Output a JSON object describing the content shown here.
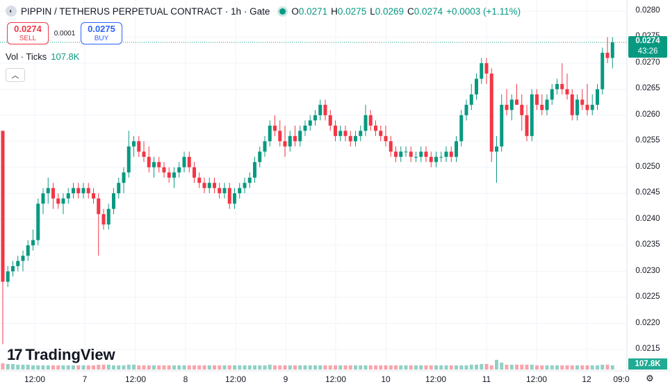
{
  "header": {
    "title": "PIPPIN / TETHERUS PERPETUAL CONTRACT · 1h · Gate",
    "ohlc": [
      {
        "k": "O",
        "v": "0.0271"
      },
      {
        "k": "H",
        "v": "0.0275"
      },
      {
        "k": "L",
        "v": "0.0269"
      },
      {
        "k": "C",
        "v": "0.0274"
      }
    ],
    "change": "+0.0003 (+1.11%)"
  },
  "trade": {
    "sell_price": "0.0274",
    "sell_label": "SELL",
    "spread": "0.0001",
    "buy_price": "0.0275",
    "buy_label": "BUY"
  },
  "volume": {
    "label": "Vol · Ticks",
    "value": "107.8K"
  },
  "branding": {
    "name": "TradingView"
  },
  "price_tag": {
    "price": "0.0274",
    "countdown": "43:26"
  },
  "colors": {
    "up": "#089981",
    "down": "#f23645",
    "accent": "#2962ff"
  },
  "chart_data": {
    "type": "candlestick",
    "y_ticks": [
      "0.0280",
      "0.0275",
      "0.0270",
      "0.0265",
      "0.0260",
      "0.0255",
      "0.0250",
      "0.0245",
      "0.0240",
      "0.0235",
      "0.0230",
      "0.0225",
      "0.0220",
      "0.0215"
    ],
    "x_ticks": [
      "12:00",
      "7",
      "12:00",
      "8",
      "12:00",
      "9",
      "12:00",
      "10",
      "12:00",
      "11",
      "12:00",
      "12",
      "09:0"
    ],
    "last_price": 0.0274,
    "candles": [
      [
        0.0257,
        0.0257,
        0.0216,
        0.0228
      ],
      [
        0.0228,
        0.0231,
        0.0227,
        0.023
      ],
      [
        0.023,
        0.0232,
        0.0229,
        0.0231
      ],
      [
        0.0231,
        0.0233,
        0.023,
        0.0232
      ],
      [
        0.0232,
        0.0234,
        0.023,
        0.0233
      ],
      [
        0.0233,
        0.0236,
        0.0232,
        0.0235
      ],
      [
        0.0235,
        0.0238,
        0.0234,
        0.0236
      ],
      [
        0.0236,
        0.0244,
        0.0235,
        0.0243
      ],
      [
        0.0243,
        0.0246,
        0.0241,
        0.0245
      ],
      [
        0.0245,
        0.0248,
        0.0243,
        0.0246
      ],
      [
        0.0246,
        0.0247,
        0.0242,
        0.0244
      ],
      [
        0.0244,
        0.0245,
        0.0242,
        0.0243
      ],
      [
        0.0243,
        0.0245,
        0.0241,
        0.0244
      ],
      [
        0.0244,
        0.0246,
        0.0243,
        0.0245
      ],
      [
        0.0245,
        0.0247,
        0.0244,
        0.0246
      ],
      [
        0.0246,
        0.0247,
        0.0244,
        0.0245
      ],
      [
        0.0245,
        0.0247,
        0.0244,
        0.0246
      ],
      [
        0.0246,
        0.0247,
        0.0244,
        0.0245
      ],
      [
        0.0245,
        0.0246,
        0.0243,
        0.0244
      ],
      [
        0.0244,
        0.0245,
        0.0233,
        0.0241
      ],
      [
        0.0241,
        0.0242,
        0.0238,
        0.0239
      ],
      [
        0.0239,
        0.0243,
        0.0238,
        0.0242
      ],
      [
        0.0242,
        0.0246,
        0.0241,
        0.0245
      ],
      [
        0.0245,
        0.0248,
        0.0244,
        0.0247
      ],
      [
        0.0247,
        0.025,
        0.0245,
        0.0249
      ],
      [
        0.0249,
        0.0257,
        0.0248,
        0.0254
      ],
      [
        0.0254,
        0.0256,
        0.0252,
        0.0255
      ],
      [
        0.0255,
        0.0256,
        0.0252,
        0.0253
      ],
      [
        0.0253,
        0.0255,
        0.0251,
        0.0252
      ],
      [
        0.0252,
        0.0254,
        0.0249,
        0.025
      ],
      [
        0.025,
        0.0252,
        0.0248,
        0.0251
      ],
      [
        0.0251,
        0.0252,
        0.0249,
        0.025
      ],
      [
        0.025,
        0.0251,
        0.0248,
        0.0249
      ],
      [
        0.0249,
        0.025,
        0.0247,
        0.0248
      ],
      [
        0.0248,
        0.025,
        0.0246,
        0.0249
      ],
      [
        0.0249,
        0.0251,
        0.0248,
        0.025
      ],
      [
        0.025,
        0.0253,
        0.0249,
        0.0252
      ],
      [
        0.0252,
        0.0253,
        0.0249,
        0.025
      ],
      [
        0.025,
        0.0251,
        0.0247,
        0.0248
      ],
      [
        0.0248,
        0.0249,
        0.0246,
        0.0247
      ],
      [
        0.0247,
        0.0248,
        0.0245,
        0.0246
      ],
      [
        0.0246,
        0.0248,
        0.0245,
        0.0247
      ],
      [
        0.0247,
        0.0248,
        0.0245,
        0.0246
      ],
      [
        0.0246,
        0.0247,
        0.0244,
        0.0245
      ],
      [
        0.0245,
        0.0247,
        0.0244,
        0.0246
      ],
      [
        0.0246,
        0.0247,
        0.0242,
        0.0243
      ],
      [
        0.0243,
        0.0246,
        0.0242,
        0.0245
      ],
      [
        0.0245,
        0.0247,
        0.0244,
        0.0246
      ],
      [
        0.0246,
        0.0248,
        0.0245,
        0.0247
      ],
      [
        0.0247,
        0.0249,
        0.0246,
        0.0248
      ],
      [
        0.0248,
        0.0252,
        0.0247,
        0.0251
      ],
      [
        0.0251,
        0.0254,
        0.025,
        0.0253
      ],
      [
        0.0253,
        0.0256,
        0.0252,
        0.0255
      ],
      [
        0.0255,
        0.0259,
        0.0254,
        0.0258
      ],
      [
        0.0258,
        0.026,
        0.0256,
        0.0257
      ],
      [
        0.0257,
        0.0259,
        0.0254,
        0.0255
      ],
      [
        0.0255,
        0.0258,
        0.0252,
        0.0254
      ],
      [
        0.0254,
        0.0257,
        0.0253,
        0.0256
      ],
      [
        0.0256,
        0.0258,
        0.0254,
        0.0255
      ],
      [
        0.0255,
        0.0258,
        0.0254,
        0.0257
      ],
      [
        0.0257,
        0.0259,
        0.0256,
        0.0258
      ],
      [
        0.0258,
        0.026,
        0.0257,
        0.0259
      ],
      [
        0.0259,
        0.0261,
        0.0258,
        0.026
      ],
      [
        0.026,
        0.0263,
        0.0259,
        0.0262
      ],
      [
        0.0262,
        0.0263,
        0.0259,
        0.026
      ],
      [
        0.026,
        0.0261,
        0.0257,
        0.0258
      ],
      [
        0.0258,
        0.0259,
        0.0255,
        0.0256
      ],
      [
        0.0256,
        0.0258,
        0.0255,
        0.0257
      ],
      [
        0.0257,
        0.0258,
        0.0255,
        0.0256
      ],
      [
        0.0256,
        0.0257,
        0.0254,
        0.0255
      ],
      [
        0.0255,
        0.0257,
        0.0254,
        0.0256
      ],
      [
        0.0256,
        0.0258,
        0.0255,
        0.0257
      ],
      [
        0.0257,
        0.0262,
        0.0256,
        0.026
      ],
      [
        0.026,
        0.0261,
        0.0257,
        0.0258
      ],
      [
        0.0258,
        0.0259,
        0.0256,
        0.0257
      ],
      [
        0.0257,
        0.0258,
        0.0255,
        0.0256
      ],
      [
        0.0256,
        0.0258,
        0.0254,
        0.0255
      ],
      [
        0.0255,
        0.0256,
        0.0252,
        0.0253
      ],
      [
        0.0253,
        0.0254,
        0.0251,
        0.0252
      ],
      [
        0.0252,
        0.0254,
        0.0251,
        0.0253
      ],
      [
        0.0253,
        0.0254,
        0.0252,
        0.0253
      ],
      [
        0.0253,
        0.0254,
        0.0251,
        0.0252
      ],
      [
        0.0252,
        0.0253,
        0.0251,
        0.0252
      ],
      [
        0.0252,
        0.0254,
        0.0251,
        0.0253
      ],
      [
        0.0253,
        0.0254,
        0.0251,
        0.0252
      ],
      [
        0.0252,
        0.0253,
        0.025,
        0.0251
      ],
      [
        0.0251,
        0.0253,
        0.025,
        0.0252
      ],
      [
        0.0252,
        0.0253,
        0.0251,
        0.0252
      ],
      [
        0.0252,
        0.0254,
        0.0251,
        0.0253
      ],
      [
        0.0253,
        0.0254,
        0.0251,
        0.0252
      ],
      [
        0.0252,
        0.0256,
        0.0251,
        0.0255
      ],
      [
        0.0255,
        0.0261,
        0.0254,
        0.026
      ],
      [
        0.026,
        0.0263,
        0.0259,
        0.0262
      ],
      [
        0.0262,
        0.0266,
        0.0261,
        0.0264
      ],
      [
        0.0264,
        0.0268,
        0.0263,
        0.0267
      ],
      [
        0.0267,
        0.0271,
        0.0266,
        0.027
      ],
      [
        0.027,
        0.0271,
        0.0266,
        0.0268
      ],
      [
        0.0268,
        0.0269,
        0.0251,
        0.0253
      ],
      [
        0.0253,
        0.0256,
        0.0247,
        0.0254
      ],
      [
        0.0254,
        0.0264,
        0.0253,
        0.0262
      ],
      [
        0.0262,
        0.0265,
        0.026,
        0.0261
      ],
      [
        0.0261,
        0.0264,
        0.0259,
        0.0263
      ],
      [
        0.0263,
        0.0266,
        0.0262,
        0.0262
      ],
      [
        0.0262,
        0.0264,
        0.0257,
        0.026
      ],
      [
        0.026,
        0.0262,
        0.0255,
        0.0256
      ],
      [
        0.0256,
        0.0265,
        0.0255,
        0.0264
      ],
      [
        0.0264,
        0.0265,
        0.0261,
        0.0262
      ],
      [
        0.0262,
        0.0264,
        0.026,
        0.0261
      ],
      [
        0.0261,
        0.0264,
        0.026,
        0.0263
      ],
      [
        0.0263,
        0.0266,
        0.0262,
        0.0265
      ],
      [
        0.0265,
        0.0267,
        0.0264,
        0.0266
      ],
      [
        0.0266,
        0.027,
        0.0264,
        0.0265
      ],
      [
        0.0265,
        0.0268,
        0.0263,
        0.0264
      ],
      [
        0.0264,
        0.0265,
        0.0259,
        0.026
      ],
      [
        0.026,
        0.0264,
        0.0259,
        0.0263
      ],
      [
        0.0263,
        0.0265,
        0.0261,
        0.0262
      ],
      [
        0.0262,
        0.0266,
        0.026,
        0.0261
      ],
      [
        0.0261,
        0.0264,
        0.026,
        0.0262
      ],
      [
        0.0262,
        0.0266,
        0.0261,
        0.0265
      ],
      [
        0.0265,
        0.0273,
        0.0264,
        0.0272
      ],
      [
        0.0272,
        0.0275,
        0.027,
        0.0271
      ],
      [
        0.0271,
        0.0275,
        0.0269,
        0.0274
      ]
    ],
    "volumes": [
      9,
      8,
      8,
      7,
      7,
      7,
      6,
      6,
      6,
      6,
      6,
      6,
      6,
      6,
      6,
      6,
      6,
      6,
      6,
      7,
      7,
      7,
      6,
      6,
      6,
      7,
      7,
      6,
      6,
      6,
      6,
      6,
      6,
      6,
      6,
      6,
      6,
      6,
      6,
      6,
      6,
      6,
      6,
      6,
      6,
      6,
      6,
      6,
      6,
      6,
      6,
      6,
      6,
      7,
      6,
      6,
      6,
      6,
      6,
      6,
      6,
      6,
      6,
      6,
      6,
      6,
      6,
      6,
      6,
      6,
      6,
      6,
      6,
      6,
      6,
      6,
      6,
      6,
      6,
      6,
      6,
      6,
      6,
      6,
      6,
      6,
      6,
      6,
      6,
      6,
      6,
      6,
      6,
      7,
      7,
      8,
      8,
      6,
      14,
      10,
      7,
      7,
      7,
      7,
      7,
      7,
      6,
      6,
      6,
      6,
      6,
      6,
      6,
      6,
      6,
      6,
      6,
      6,
      6,
      7,
      7,
      6
    ]
  }
}
